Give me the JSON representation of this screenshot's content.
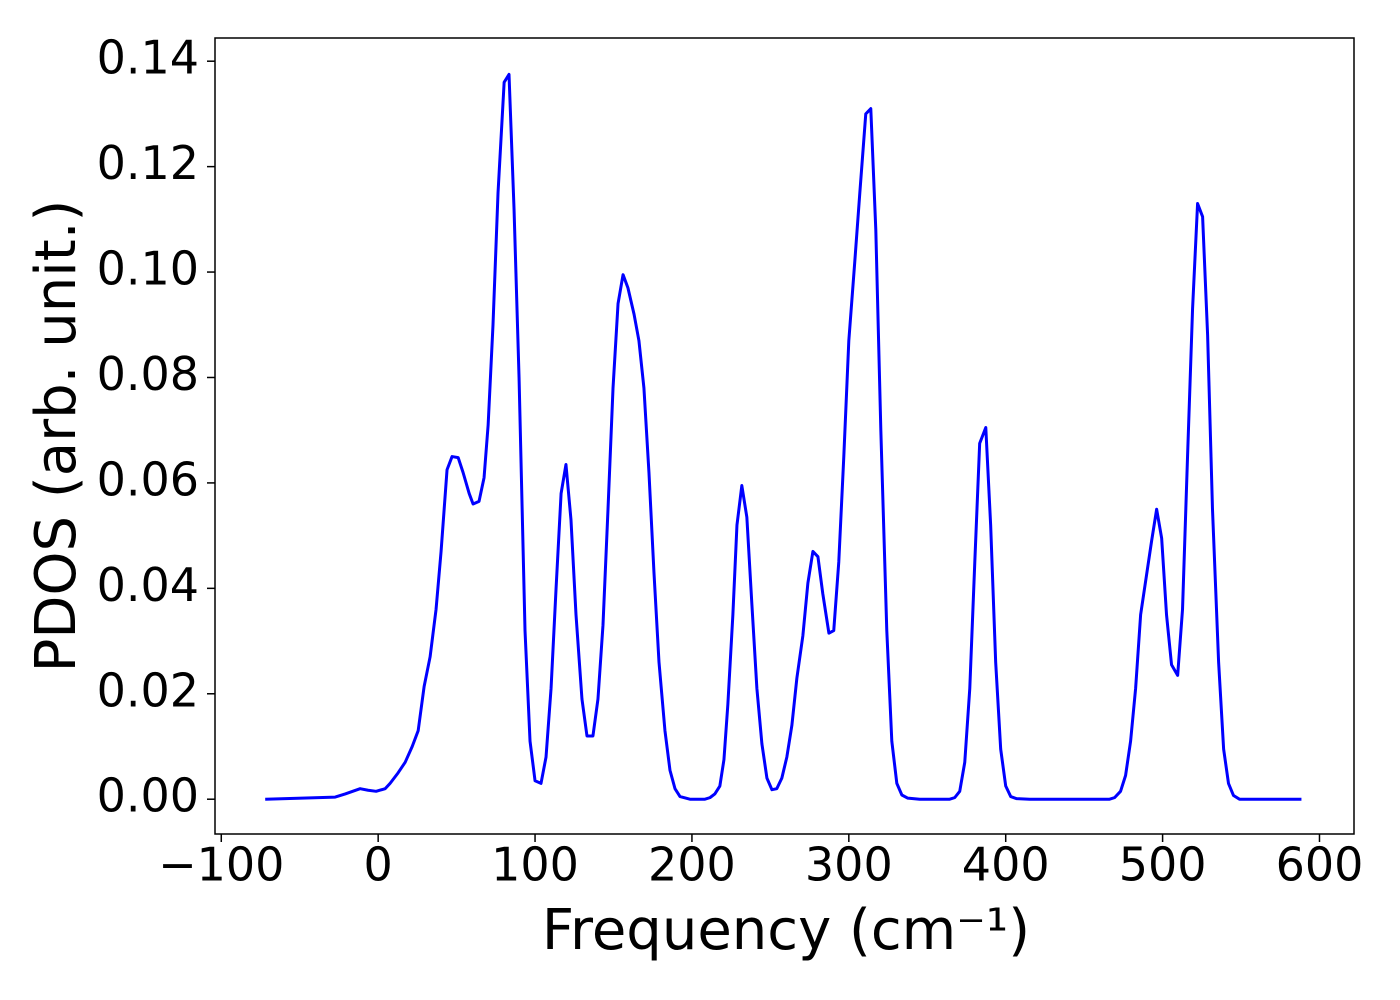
{
  "chart_data": {
    "type": "line",
    "x_label": "Frequency (cm⁻¹)",
    "y_label": "PDOS (arb. unit.)",
    "color": "#0000ff",
    "grid": false,
    "xlim": [
      -104,
      622
    ],
    "ylim": [
      -0.0066,
      0.1444
    ],
    "xticks": [
      {
        "value": -100,
        "label": "−100"
      },
      0,
      100,
      200,
      300,
      400,
      500,
      600
    ],
    "yticks": [
      {
        "value": 0,
        "label": "0.00"
      },
      {
        "value": 0.02,
        "label": "0.02"
      },
      {
        "value": 0.04,
        "label": "0.04"
      },
      {
        "value": 0.06,
        "label": "0.06"
      },
      {
        "value": 0.08,
        "label": "0.08"
      },
      {
        "value": 0.1,
        "label": "0.10"
      },
      {
        "value": 0.12,
        "label": "0.12"
      },
      {
        "value": 0.14,
        "label": "0.14"
      }
    ],
    "x": [
      -72.0,
      -27.4,
      -21.0,
      -11.5,
      -6.4,
      -1.3,
      4.5,
      7.6,
      12.7,
      17.2,
      21.7,
      25.5,
      29.3,
      33.1,
      36.9,
      40.1,
      43.9,
      47.1,
      51.0,
      54.1,
      58.0,
      60.5,
      64.3,
      67.5,
      70.1,
      73.2,
      76.4,
      80.3,
      83.4,
      86.6,
      89.8,
      93.6,
      96.8,
      100.0,
      103.8,
      107.0,
      110.2,
      113.4,
      116.6,
      119.7,
      122.9,
      126.1,
      129.9,
      133.1,
      136.9,
      140.1,
      143.3,
      146.5,
      149.7,
      152.9,
      156.1,
      159.2,
      163.1,
      166.2,
      169.4,
      172.6,
      175.8,
      179.0,
      182.8,
      186.0,
      189.2,
      192.4,
      198.7,
      208.3,
      211.5,
      214.6,
      217.8,
      220.4,
      222.9,
      226.1,
      228.7,
      231.8,
      235.0,
      238.2,
      241.4,
      244.6,
      247.8,
      251.0,
      254.1,
      257.3,
      260.5,
      263.7,
      266.9,
      270.7,
      273.9,
      277.1,
      280.3,
      283.4,
      287.3,
      290.4,
      293.6,
      296.8,
      300.0,
      303.8,
      307.0,
      310.8,
      314.0,
      317.2,
      320.4,
      324.2,
      327.4,
      330.6,
      333.8,
      337.6,
      345.2,
      364.3,
      367.5,
      370.7,
      373.9,
      377.1,
      380.3,
      383.4,
      387.3,
      390.4,
      393.6,
      396.8,
      400.0,
      403.2,
      407.0,
      415.3,
      466.2,
      469.4,
      473.2,
      476.4,
      479.6,
      482.8,
      486.0,
      493.0,
      496.2,
      499.4,
      502.5,
      505.7,
      509.6,
      512.7,
      515.9,
      519.1,
      522.3,
      525.5,
      528.7,
      531.8,
      535.7,
      538.9,
      542.0,
      545.2,
      549.0,
      588.5
    ],
    "values": [
      0,
      0.0004,
      0.001,
      0.002,
      0.0017,
      0.0015,
      0.002,
      0.003,
      0.005,
      0.007,
      0.01,
      0.013,
      0.0214,
      0.027,
      0.036,
      0.047,
      0.0625,
      0.065,
      0.0648,
      0.062,
      0.058,
      0.056,
      0.0565,
      0.061,
      0.071,
      0.09,
      0.115,
      0.136,
      0.1375,
      0.112,
      0.08,
      0.032,
      0.011,
      0.0035,
      0.003,
      0.008,
      0.021,
      0.04,
      0.058,
      0.0635,
      0.053,
      0.035,
      0.019,
      0.012,
      0.012,
      0.019,
      0.033,
      0.055,
      0.078,
      0.094,
      0.0995,
      0.097,
      0.092,
      0.087,
      0.078,
      0.062,
      0.043,
      0.026,
      0.013,
      0.0055,
      0.002,
      0.0005,
      0,
      0,
      0.0003,
      0.001,
      0.0025,
      0.0075,
      0.018,
      0.035,
      0.052,
      0.0595,
      0.0535,
      0.037,
      0.021,
      0.0105,
      0.004,
      0.0018,
      0.002,
      0.004,
      0.008,
      0.014,
      0.023,
      0.031,
      0.041,
      0.047,
      0.046,
      0.039,
      0.0315,
      0.032,
      0.045,
      0.065,
      0.087,
      0.102,
      0.115,
      0.13,
      0.131,
      0.108,
      0.07,
      0.032,
      0.011,
      0.003,
      0.0008,
      0.0002,
      0,
      0,
      0.0003,
      0.0015,
      0.007,
      0.021,
      0.045,
      0.0675,
      0.0705,
      0.052,
      0.026,
      0.0095,
      0.0025,
      0.0005,
      0.0001,
      0,
      0,
      0.0003,
      0.0015,
      0.0045,
      0.011,
      0.021,
      0.035,
      0.049,
      0.055,
      0.0495,
      0.035,
      0.0255,
      0.0235,
      0.036,
      0.065,
      0.093,
      0.113,
      0.1105,
      0.088,
      0.055,
      0.026,
      0.0095,
      0.003,
      0.0007,
      0,
      0
    ]
  }
}
